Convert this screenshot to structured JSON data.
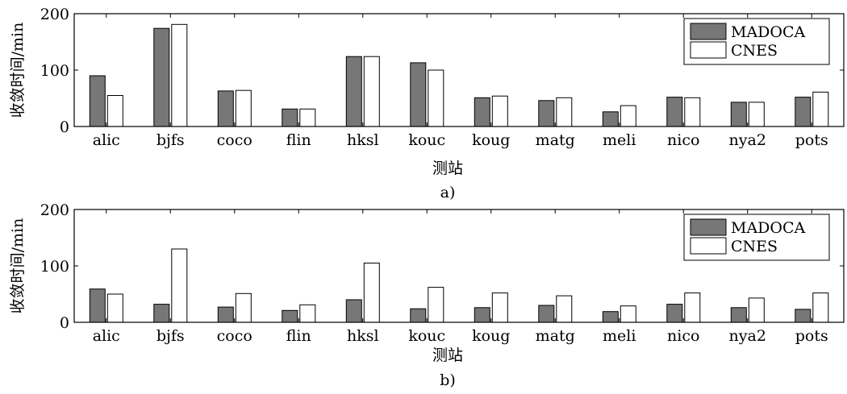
{
  "chart_data": [
    {
      "type": "bar",
      "panel_label": "a)",
      "xlabel": "测站",
      "ylabel": "收敛时间/min",
      "ylim": [
        0,
        200
      ],
      "yticks": [
        0,
        100,
        200
      ],
      "grid": false,
      "legend_position": "top-right",
      "categories": [
        "alic",
        "bjfs",
        "coco",
        "flin",
        "hksl",
        "kouc",
        "koug",
        "matg",
        "meli",
        "nico",
        "nya2",
        "pots"
      ],
      "series": [
        {
          "name": "MADOCA",
          "color": "#777777",
          "values": [
            90,
            174,
            63,
            31,
            124,
            113,
            51,
            46,
            26,
            52,
            43,
            52
          ]
        },
        {
          "name": "CNES",
          "color": "#ffffff",
          "values": [
            55,
            181,
            64,
            31,
            124,
            100,
            54,
            51,
            37,
            51,
            43,
            61
          ]
        }
      ]
    },
    {
      "type": "bar",
      "panel_label": "b)",
      "xlabel": "测站",
      "ylabel": "收敛时间/min",
      "ylim": [
        0,
        200
      ],
      "yticks": [
        0,
        100,
        200
      ],
      "grid": false,
      "legend_position": "top-right",
      "categories": [
        "alic",
        "bjfs",
        "coco",
        "flin",
        "hksl",
        "kouc",
        "koug",
        "matg",
        "meli",
        "nico",
        "nya2",
        "pots"
      ],
      "series": [
        {
          "name": "MADOCA",
          "color": "#777777",
          "values": [
            59,
            32,
            27,
            21,
            40,
            24,
            26,
            30,
            19,
            32,
            26,
            23
          ]
        },
        {
          "name": "CNES",
          "color": "#ffffff",
          "values": [
            50,
            130,
            51,
            31,
            105,
            62,
            52,
            47,
            29,
            52,
            43,
            52
          ]
        }
      ]
    }
  ]
}
